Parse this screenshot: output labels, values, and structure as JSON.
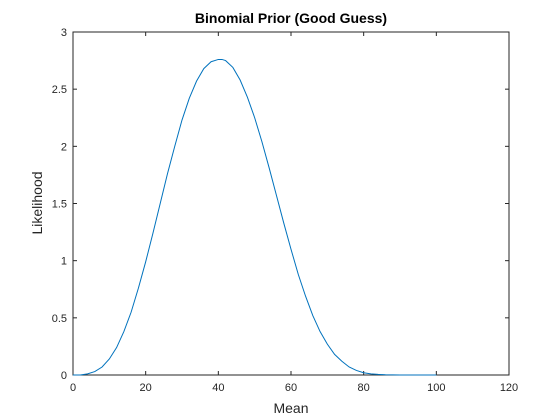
{
  "chart_data": {
    "type": "line",
    "title": "Binomial Prior (Good Guess)",
    "xlabel": "Mean",
    "ylabel": "Likelihood",
    "xlim": [
      0,
      120
    ],
    "ylim": [
      0,
      3
    ],
    "xticks": [
      0,
      20,
      40,
      60,
      80,
      100,
      120
    ],
    "yticks": [
      0,
      0.5,
      1,
      1.5,
      2,
      2.5,
      3
    ],
    "xtick_labels": [
      "0",
      "20",
      "40",
      "60",
      "80",
      "100",
      "120"
    ],
    "ytick_labels": [
      "0",
      "0.5",
      "1",
      "1.5",
      "2",
      "2.5",
      "3"
    ],
    "grid": false,
    "series": [
      {
        "color": "#0072BD",
        "x": [
          0,
          2,
          4,
          6,
          8,
          10,
          12,
          14,
          16,
          18,
          20,
          22,
          24,
          26,
          28,
          30,
          32,
          34,
          36,
          38,
          40,
          41,
          42,
          44,
          46,
          48,
          50,
          52,
          54,
          56,
          58,
          60,
          62,
          64,
          66,
          68,
          70,
          72,
          74,
          76,
          78,
          80,
          82,
          84,
          86,
          88,
          90,
          92,
          94,
          96,
          98,
          100
        ],
        "y": [
          0,
          0.0,
          0.01,
          0.03,
          0.07,
          0.14,
          0.24,
          0.38,
          0.55,
          0.76,
          0.99,
          1.24,
          1.5,
          1.76,
          2.0,
          2.23,
          2.42,
          2.57,
          2.68,
          2.74,
          2.76,
          2.76,
          2.75,
          2.69,
          2.58,
          2.43,
          2.25,
          2.04,
          1.81,
          1.57,
          1.33,
          1.1,
          0.88,
          0.69,
          0.52,
          0.38,
          0.27,
          0.18,
          0.12,
          0.07,
          0.04,
          0.02,
          0.01,
          0.005,
          0.002,
          0.001,
          0.0005,
          0.0002,
          0.0001,
          0,
          0,
          0
        ]
      }
    ]
  }
}
